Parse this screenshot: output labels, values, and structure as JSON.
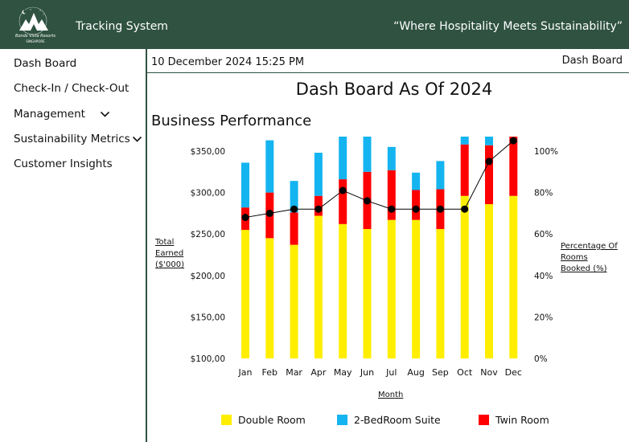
{
  "header": {
    "logo_text": "Bonds Vista Resorts",
    "logo_sub": "SINGAPORE",
    "app_title": "Tracking System",
    "tagline": "“Where Hospitality Meets Sustainability”"
  },
  "sidebar": {
    "items": [
      {
        "label": "Dash Board"
      },
      {
        "label": "Check-In / Check-Out"
      },
      {
        "label": "Management"
      },
      {
        "label": "Sustainability Metrics"
      },
      {
        "label": "Customer Insights"
      }
    ]
  },
  "topbar": {
    "datetime": "10 December 2024  15:25 PM",
    "breadcrumb": "Dash Board"
  },
  "main": {
    "title": "Dash Board As Of 2024",
    "section": "Business Performance"
  },
  "colors": {
    "header_bg": "#2f5241",
    "double": "#ffee00",
    "suite": "#14b4f0",
    "twin": "#ff0000",
    "line": "#000000"
  },
  "chart_data": {
    "type": "bar",
    "stacked": true,
    "categories": [
      "Jan",
      "Feb",
      "Mar",
      "Apr",
      "May",
      "Jun",
      "Jul",
      "Aug",
      "Sep",
      "Oct",
      "Nov",
      "Dec"
    ],
    "ylabel_lines": [
      "Total",
      "Earned",
      "($'000)"
    ],
    "y2label_lines": [
      "Percentage Of",
      "Rooms",
      "Booked (%)"
    ],
    "xlabel": "Month",
    "ylim": [
      100,
      350
    ],
    "yticks": [
      "$100,00",
      "$150,00",
      "$200,00",
      "$250,00",
      "$300,00",
      "$350,00"
    ],
    "ytick_values": [
      100,
      150,
      200,
      250,
      300,
      350
    ],
    "y2lim": [
      0,
      100
    ],
    "y2ticks": [
      "0%",
      "20%",
      "40%",
      "60%",
      "80%",
      "100%"
    ],
    "y2tick_values": [
      0,
      20,
      40,
      60,
      80,
      100
    ],
    "series": [
      {
        "name": "Double Room",
        "values": [
          155,
          145,
          137,
          172,
          162,
          156,
          167,
          167,
          156,
          196,
          186,
          196
        ]
      },
      {
        "name": "Twin Room",
        "values": [
          27,
          55,
          39,
          24,
          54,
          69,
          60,
          36,
          48,
          62,
          71,
          115
        ]
      },
      {
        "name": "2-BedRoom Suite",
        "values": [
          54,
          63,
          38,
          52,
          79,
          43,
          28,
          21,
          34,
          15,
          56,
          43
        ]
      }
    ],
    "line_series": {
      "name": "Percentage Of Rooms Booked",
      "values": [
        68,
        70,
        72,
        72,
        81,
        76,
        72,
        72,
        72,
        72,
        95,
        105
      ]
    },
    "legend": [
      {
        "name": "Double Room",
        "color": "#ffee00"
      },
      {
        "name": "2-BedRoom Suite",
        "color": "#14b4f0"
      },
      {
        "name": "Twin Room",
        "color": "#ff0000"
      }
    ],
    "legend_position": "bottom"
  }
}
